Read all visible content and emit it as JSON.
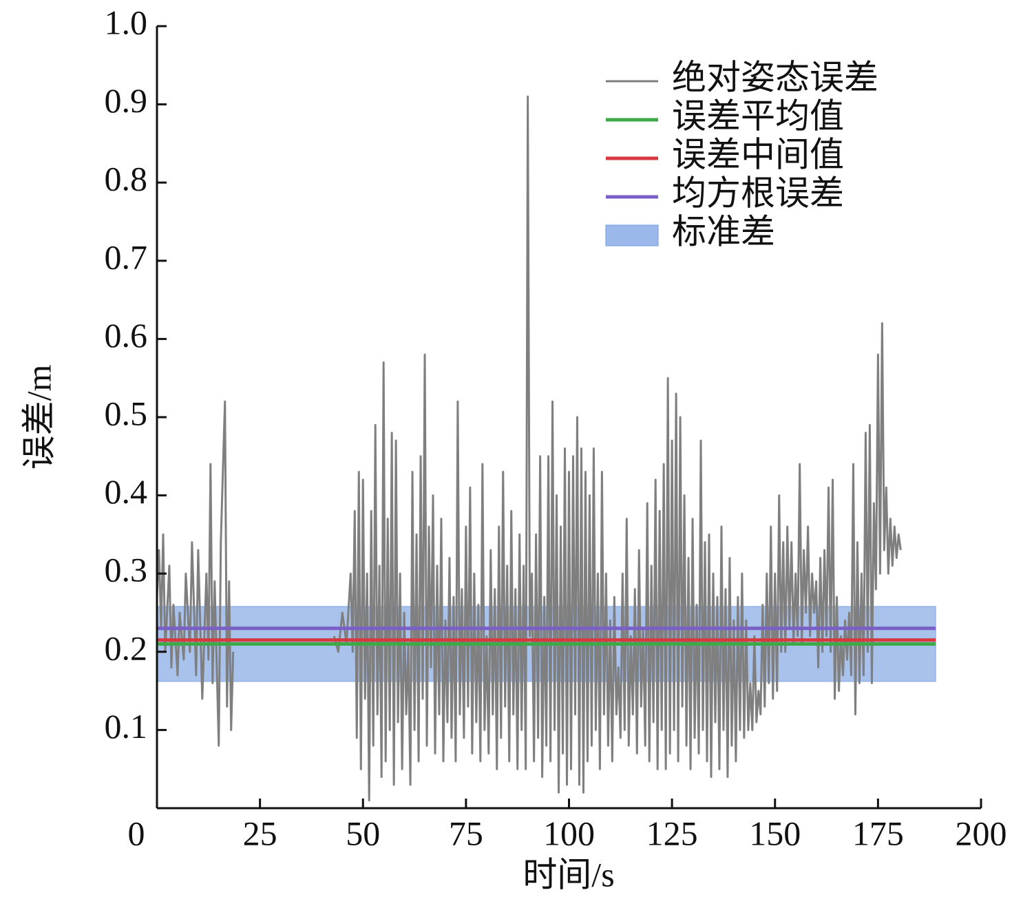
{
  "chart_data": {
    "type": "line",
    "x_label": "时间/s",
    "y_label": "误差/m",
    "xlim": [
      0,
      200
    ],
    "ylim": [
      0,
      1
    ],
    "xticks": [
      0,
      25,
      50,
      75,
      100,
      125,
      150,
      175,
      200
    ],
    "yticks": [
      0.1,
      0.2,
      0.3,
      0.4,
      0.5,
      0.6,
      0.7,
      0.8,
      0.9,
      {
        "value": 1,
        "label": "1.0"
      }
    ],
    "legend": "top-right",
    "x": [
      0,
      0.5,
      1,
      1.5,
      2,
      3,
      3.5,
      4,
      5,
      5.5,
      6.5,
      7,
      8,
      8.5,
      9.5,
      10,
      11,
      12,
      12.5,
      13,
      13.5,
      14,
      15,
      15.5,
      16.5,
      17,
      17.5,
      18,
      18.5,
      30,
      43,
      44,
      45,
      46,
      47,
      47.5,
      48,
      48.5,
      49,
      49.5,
      50,
      50.5,
      51,
      51.5,
      52,
      52.5,
      53,
      53.5,
      54,
      54.5,
      55,
      55.5,
      56,
      56.5,
      57,
      57.5,
      58,
      58.5,
      59,
      59.5,
      60,
      60.5,
      61,
      61.5,
      62,
      62.5,
      63,
      63.5,
      64,
      64.5,
      65,
      65.5,
      66,
      66.5,
      67,
      67.5,
      68,
      68.5,
      69,
      69.5,
      70,
      70.5,
      71,
      71.5,
      72,
      72.5,
      73,
      73.5,
      74,
      74.5,
      75,
      75.5,
      76,
      76.5,
      77,
      77.5,
      78,
      78.5,
      79,
      79.5,
      80,
      80.5,
      81,
      81.5,
      82,
      82.5,
      83,
      83.5,
      84,
      84.5,
      85,
      85.5,
      86,
      86.5,
      87,
      87.5,
      88,
      88.5,
      89,
      89.5,
      90,
      90.5,
      91,
      91.5,
      92,
      92.5,
      93,
      93.5,
      94,
      94.5,
      95,
      95.5,
      96,
      96.5,
      97,
      97.5,
      98,
      98.5,
      99,
      99.5,
      100,
      100.5,
      101,
      101.5,
      102,
      102.5,
      103,
      103.5,
      104,
      104.5,
      105,
      105.5,
      106,
      106.5,
      107,
      107.5,
      108,
      108.5,
      109,
      109.5,
      110,
      110.5,
      111,
      111.5,
      112,
      112.5,
      113,
      113.5,
      114,
      114.5,
      115,
      115.5,
      116,
      116.5,
      117,
      117.5,
      118,
      118.5,
      119,
      119.5,
      120,
      120.5,
      121,
      121.5,
      122,
      122.5,
      123,
      123.5,
      124,
      124.5,
      125,
      125.5,
      126,
      126.5,
      127,
      127.5,
      128,
      128.5,
      129,
      129.5,
      130,
      130.5,
      131,
      131.5,
      132,
      132.5,
      133,
      133.5,
      134,
      134.5,
      135,
      135.5,
      136,
      136.5,
      137,
      137.5,
      138,
      138.5,
      139,
      139.5,
      140,
      140.5,
      141,
      141.5,
      142,
      142.5,
      143,
      143.5,
      144,
      144.5,
      145,
      145.5,
      146,
      146.5,
      147,
      147.5,
      148,
      148.5,
      149,
      149.5,
      150,
      150.5,
      151,
      151.5,
      152,
      152.5,
      153,
      153.5,
      154,
      154.5,
      155,
      155.5,
      156,
      156.5,
      157,
      157.5,
      158,
      158.5,
      159,
      159.5,
      160,
      160.5,
      161,
      161.5,
      162,
      162.5,
      163,
      163.5,
      164,
      164.5,
      165,
      165.5,
      166,
      166.5,
      167,
      167.5,
      168,
      168.5,
      169,
      169.5,
      170,
      170.5,
      171,
      171.5,
      172,
      172.5,
      173,
      173.5,
      174,
      174.5,
      175,
      175.5,
      176,
      176.5,
      177,
      177.5,
      178,
      178.5,
      179,
      179.5,
      180,
      180.5
    ],
    "series": [
      {
        "name": "绝对姿态误差",
        "color": "#7f7f7f",
        "values": [
          0.27,
          0.33,
          0.23,
          0.35,
          0.2,
          0.31,
          0.18,
          0.26,
          0.17,
          0.25,
          0.19,
          0.3,
          0.2,
          0.34,
          0.17,
          0.33,
          0.14,
          0.3,
          0.19,
          0.44,
          0.16,
          0.29,
          0.08,
          0.34,
          0.52,
          0.13,
          0.29,
          0.1,
          0.2,
          null,
          0.22,
          0.2,
          0.25,
          0.21,
          0.3,
          0.2,
          0.38,
          0.09,
          0.43,
          0.05,
          0.42,
          0.14,
          0.3,
          0.01,
          0.38,
          0.08,
          0.49,
          0.12,
          0.31,
          0.04,
          0.57,
          0.06,
          0.37,
          0.1,
          0.48,
          0.03,
          0.47,
          0.11,
          0.3,
          0.05,
          0.25,
          0.12,
          0.21,
          0.03,
          0.43,
          0.1,
          0.35,
          0.06,
          0.45,
          0.14,
          0.58,
          0.08,
          0.36,
          0.18,
          0.4,
          0.07,
          0.31,
          0.12,
          0.37,
          0.06,
          0.24,
          0.11,
          0.32,
          0.09,
          0.27,
          0.06,
          0.52,
          0.12,
          0.28,
          0.09,
          0.36,
          0.13,
          0.41,
          0.07,
          0.3,
          0.11,
          0.26,
          0.06,
          0.44,
          0.1,
          0.22,
          0.07,
          0.33,
          0.12,
          0.28,
          0.05,
          0.36,
          0.09,
          0.43,
          0.13,
          0.31,
          0.06,
          0.38,
          0.12,
          0.28,
          0.05,
          0.35,
          0.1,
          0.31,
          0.05,
          0.91,
          0.22,
          0.3,
          0.06,
          0.35,
          0.09,
          0.45,
          0.04,
          0.27,
          0.08,
          0.45,
          0.06,
          0.52,
          0.1,
          0.4,
          0.02,
          0.36,
          0.07,
          0.46,
          0.03,
          0.43,
          0.05,
          0.45,
          0.12,
          0.5,
          0.03,
          0.46,
          0.02,
          0.43,
          0.06,
          0.4,
          0.08,
          0.46,
          0.1,
          0.3,
          0.05,
          0.43,
          0.12,
          0.3,
          0.08,
          0.24,
          0.06,
          0.27,
          0.12,
          0.18,
          0.09,
          0.3,
          0.1,
          0.37,
          0.08,
          0.22,
          0.12,
          0.28,
          0.07,
          0.33,
          0.13,
          0.23,
          0.08,
          0.39,
          0.06,
          0.31,
          0.11,
          0.42,
          0.05,
          0.38,
          0.1,
          0.44,
          0.05,
          0.55,
          0.07,
          0.47,
          0.1,
          0.53,
          0.06,
          0.5,
          0.13,
          0.4,
          0.08,
          0.32,
          0.05,
          0.37,
          0.09,
          0.26,
          0.07,
          0.47,
          0.1,
          0.34,
          0.06,
          0.35,
          0.04,
          0.3,
          0.11,
          0.27,
          0.05,
          0.36,
          0.1,
          0.28,
          0.04,
          0.32,
          0.08,
          0.24,
          0.06,
          0.27,
          0.1,
          0.3,
          0.09,
          0.24,
          0.1,
          0.16,
          0.1,
          0.22,
          0.11,
          0.15,
          0.12,
          0.26,
          0.13,
          0.3,
          0.16,
          0.36,
          0.14,
          0.3,
          0.15,
          0.4,
          0.2,
          0.34,
          0.2,
          0.36,
          0.23,
          0.34,
          0.21,
          0.3,
          0.22,
          0.44,
          0.21,
          0.33,
          0.25,
          0.36,
          0.22,
          0.3,
          0.25,
          0.29,
          0.18,
          0.32,
          0.2,
          0.33,
          0.22,
          0.41,
          0.2,
          0.42,
          0.14,
          0.27,
          0.15,
          0.22,
          0.17,
          0.24,
          0.19,
          0.25,
          0.17,
          0.44,
          0.12,
          0.34,
          0.16,
          0.3,
          0.17,
          0.48,
          0.2,
          0.49,
          0.16,
          0.39,
          0.28,
          0.58,
          0.3,
          0.62,
          0.33,
          0.41,
          0.3,
          0.37,
          0.31,
          0.36,
          0.32,
          0.35,
          0.33
        ]
      }
    ],
    "span": [
      0,
      189
    ],
    "reference_lines": [
      {
        "name": "误差平均值",
        "color": "#3daa4a",
        "value": 0.21
      },
      {
        "name": "误差中间值",
        "color": "#d6393f",
        "value": 0.215
      },
      {
        "name": "均方根误差",
        "color": "#7a5fc6",
        "value": 0.23
      }
    ],
    "band": {
      "name": "标准差",
      "color": "#6f9ae0",
      "range": [
        0.162,
        0.258
      ]
    }
  }
}
